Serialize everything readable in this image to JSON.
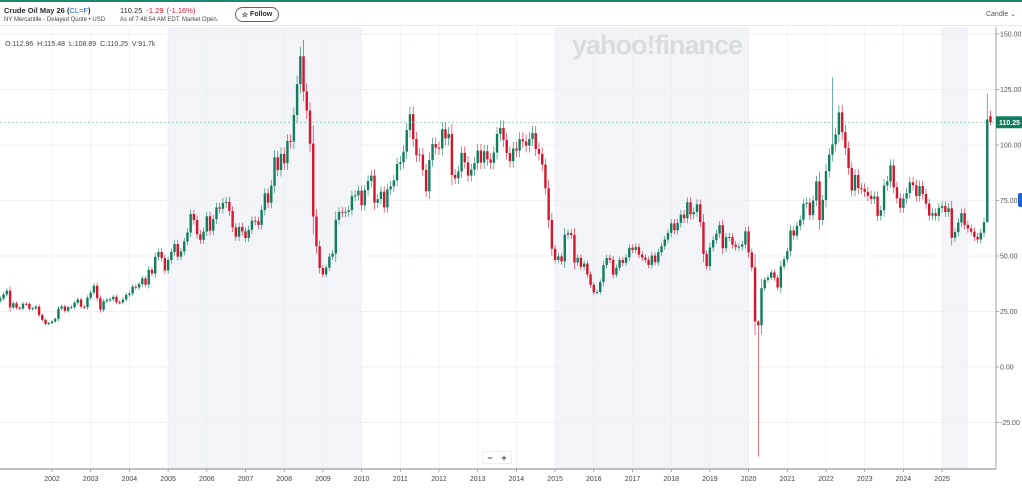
{
  "header": {
    "name": "Crude Oil May 26",
    "symbol": "CL=F",
    "exchange": "NY Mercantile - Delayed Quote • USD",
    "price": "110.25",
    "change": "-1.29",
    "change_pct": "(-1.16%)",
    "as_of": "As of 7:48:54 AM EDT. Market Open.",
    "follow_label": "Follow",
    "chart_type": "Candle"
  },
  "ohlc_readout": "O:112.96  H:115.48  L:108.89  C:110.25  V:91.7k",
  "watermark": "yahoo!finance",
  "zoom_controls": {
    "minus": "−",
    "plus": "+"
  },
  "colors": {
    "up": "#0f7d5e",
    "down": "#d6142b",
    "shade": "#f2f4f9",
    "grid": "#eceef1"
  },
  "chart_data": {
    "type": "candlestick",
    "interval": "monthly",
    "start_month": "2000-09",
    "closes": [
      30.8,
      32.7,
      34.4,
      26.8,
      28.7,
      26.7,
      26.3,
      28.5,
      28.4,
      26.2,
      26.4,
      27.2,
      23.4,
      21.2,
      19.4,
      19.8,
      20.5,
      21.7,
      26.3,
      27.3,
      25.3,
      26.9,
      27.0,
      28.9,
      30.4,
      27.2,
      26.9,
      31.2,
      33.5,
      36.6,
      31.0,
      25.8,
      29.6,
      30.2,
      30.5,
      31.6,
      29.2,
      29.1,
      30.4,
      32.5,
      33.1,
      36.2,
      35.8,
      37.4,
      39.9,
      37.1,
      43.8,
      42.1,
      49.6,
      51.8,
      49.1,
      43.5,
      48.2,
      51.8,
      55.4,
      49.7,
      52.0,
      56.5,
      60.6,
      68.9,
      66.2,
      59.8,
      57.3,
      61.0,
      67.9,
      61.4,
      66.6,
      71.9,
      71.3,
      73.9,
      74.4,
      70.3,
      62.9,
      58.7,
      63.1,
      61.1,
      58.1,
      61.8,
      65.9,
      65.7,
      64.0,
      70.7,
      78.2,
      74.0,
      81.7,
      94.5,
      88.7,
      96.0,
      91.8,
      101.8,
      101.6,
      113.5,
      127.4,
      140.0,
      124.1,
      115.5,
      100.6,
      67.8,
      54.4,
      44.6,
      41.7,
      44.8,
      49.7,
      51.1,
      66.3,
      69.9,
      69.5,
      69.9,
      70.6,
      77.0,
      77.3,
      79.4,
      72.9,
      79.7,
      83.8,
      86.2,
      74.0,
      75.6,
      79.0,
      71.9,
      80.0,
      81.4,
      84.1,
      91.4,
      92.2,
      97.0,
      106.7,
      113.9,
      102.7,
      95.4,
      95.7,
      88.8,
      79.2,
      93.2,
      100.4,
      98.8,
      98.5,
      107.1,
      103.0,
      104.9,
      86.5,
      85.0,
      88.1,
      96.5,
      92.2,
      86.2,
      88.9,
      91.8,
      97.5,
      92.1,
      97.2,
      93.5,
      92.0,
      96.6,
      105.0,
      107.7,
      102.3,
      96.4,
      92.7,
      98.4,
      97.5,
      102.6,
      101.6,
      99.7,
      102.7,
      105.4,
      98.2,
      96.0,
      91.2,
      80.5,
      66.2,
      53.3,
      48.2,
      49.8,
      47.6,
      59.6,
      60.3,
      59.5,
      47.1,
      49.2,
      45.1,
      46.6,
      41.7,
      37.0,
      33.6,
      33.8,
      38.3,
      45.9,
      49.1,
      48.3,
      41.6,
      44.7,
      48.2,
      46.9,
      49.4,
      53.7,
      52.8,
      54.0,
      50.6,
      49.3,
      48.3,
      46.0,
      50.2,
      47.2,
      51.7,
      54.4,
      57.4,
      60.4,
      64.7,
      61.6,
      64.9,
      68.6,
      67.0,
      74.2,
      68.8,
      69.8,
      73.3,
      65.3,
      50.9,
      45.4,
      53.8,
      57.2,
      60.1,
      63.9,
      53.5,
      58.5,
      58.6,
      55.1,
      54.1,
      54.2,
      55.2,
      61.1,
      51.6,
      44.8,
      20.5,
      18.8,
      35.5,
      39.3,
      40.3,
      42.6,
      40.2,
      35.8,
      45.3,
      48.5,
      52.2,
      61.5,
      59.2,
      63.6,
      66.3,
      73.5,
      74.0,
      68.5,
      75.0,
      83.6,
      66.2,
      75.2,
      88.2,
      95.7,
      100.3,
      104.7,
      114.7,
      105.8,
      98.6,
      89.6,
      79.5,
      86.5,
      80.6,
      80.3,
      78.9,
      77.1,
      75.7,
      76.8,
      68.1,
      70.6,
      81.8,
      83.6,
      90.8,
      81.0,
      76.0,
      71.7,
      75.9,
      78.3,
      83.2,
      81.9,
      77.0,
      81.5,
      77.9,
      73.6,
      68.2,
      69.3,
      68.0,
      71.7,
      72.5,
      69.8,
      71.5,
      58.2,
      60.8,
      65.1,
      69.3,
      64.0,
      62.4,
      61.0,
      58.6,
      57.4,
      60.5,
      65.2,
      111.5,
      110.25
    ],
    "wick_extremes": {
      "2008-07": {
        "high": 147.3
      },
      "2020-04": {
        "low": -40.3
      },
      "2022-03": {
        "high": 130.5
      },
      "2026-04": {
        "high": 115.48,
        "low": 108.89
      },
      "2026-03": {
        "low": 97.0
      }
    },
    "last_price": "110.25",
    "y_ticks": [
      "150.00",
      "125.00",
      "100.00",
      "75.00",
      "50.00",
      "25.00",
      "0.00",
      "-25.00"
    ],
    "y_tick_values": [
      150,
      125,
      100,
      75,
      50,
      25,
      0,
      -25
    ],
    "ylim": [
      -44,
      165
    ],
    "x_ticks": [
      "2002",
      "2003",
      "2004",
      "2005",
      "2006",
      "2007",
      "2008",
      "2009",
      "2010",
      "2011",
      "2012",
      "2013",
      "2014",
      "2015",
      "2016",
      "2017",
      "2018",
      "2019",
      "2020",
      "2021",
      "2022",
      "2023",
      "2024",
      "2025"
    ],
    "shaded_ranges": [
      [
        "2005",
        "2010"
      ],
      [
        "2015",
        "2020"
      ],
      [
        "2025",
        "2025-09"
      ]
    ],
    "grid": true
  }
}
